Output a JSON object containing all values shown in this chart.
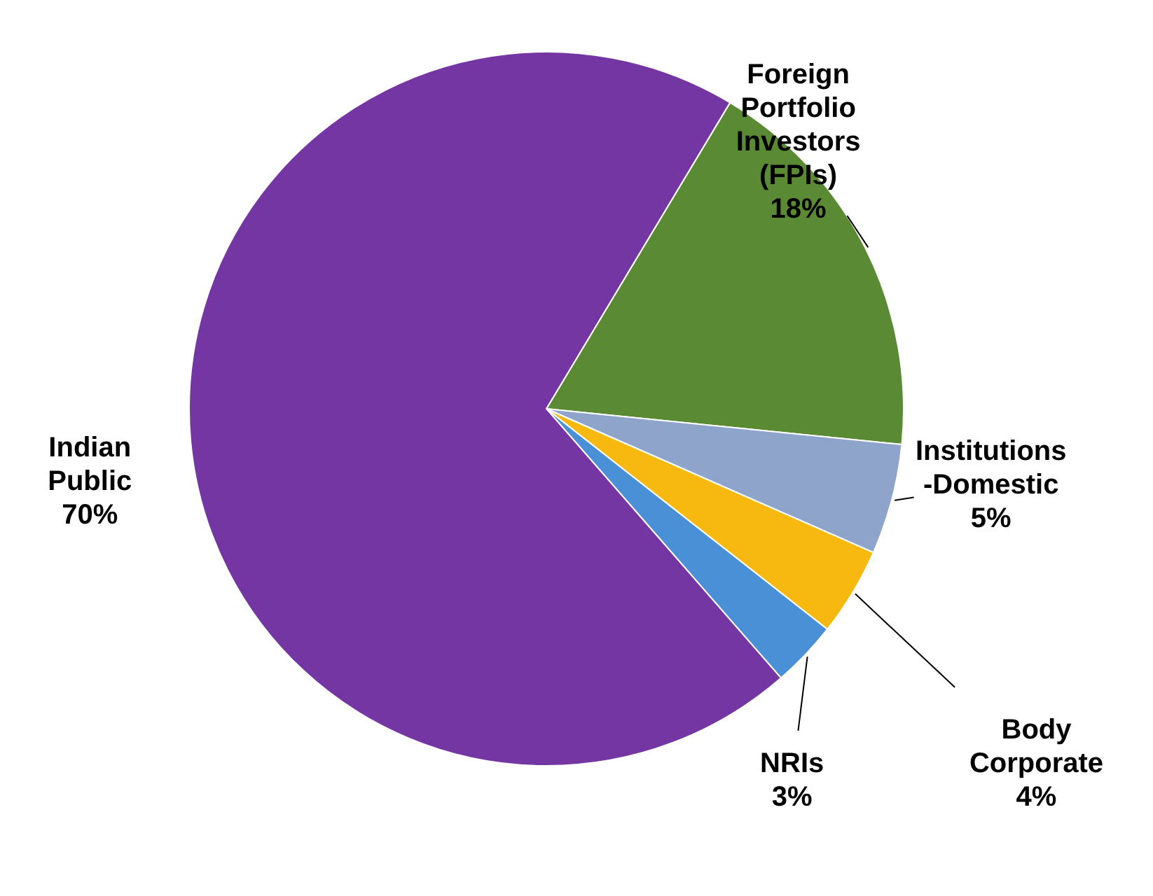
{
  "chart_data": {
    "type": "pie",
    "categories": [
      "Foreign Portfolio Investors (FPIs)",
      "Institutions -Domestic",
      "Body Corporate",
      "NRIs",
      "Indian Public"
    ],
    "values": [
      18,
      5,
      4,
      3,
      70
    ],
    "value_labels": [
      "18%",
      "5%",
      "4%",
      "3%",
      "70%"
    ],
    "colors": [
      "#5b8a35",
      "#8fa4cb",
      "#f7b90f",
      "#4a90d6",
      "#7436a3"
    ]
  }
}
